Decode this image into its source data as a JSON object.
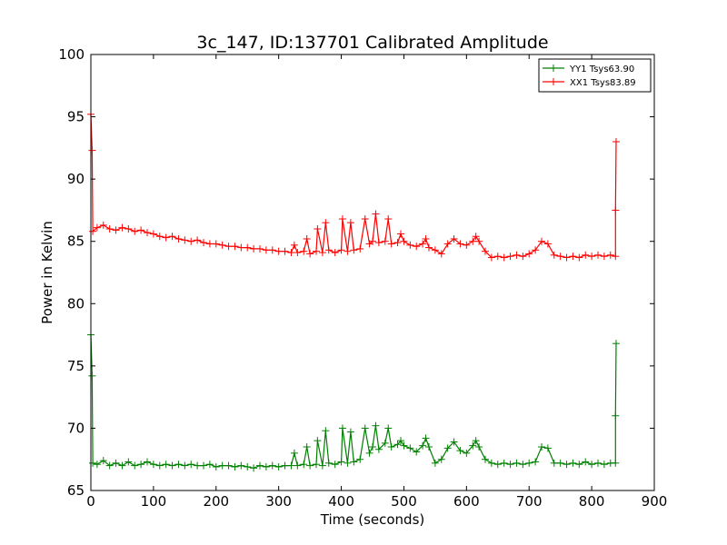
{
  "chart_data": {
    "type": "line",
    "title": "3c_147, ID:137701 Calibrated Amplitude",
    "xlabel": "Time (seconds)",
    "ylabel": "Power in Kelvin",
    "xlim": [
      0,
      900
    ],
    "ylim": [
      65,
      100
    ],
    "xticks": [
      0,
      100,
      200,
      300,
      400,
      500,
      600,
      700,
      800,
      900
    ],
    "yticks": [
      65,
      70,
      75,
      80,
      85,
      90,
      95,
      100
    ],
    "grid": false,
    "legend": "top-right",
    "series": [
      {
        "name": "YY1 Tsys63.90",
        "color": "#008000",
        "marker": "plus",
        "points": [
          [
            0,
            77.5
          ],
          [
            2,
            74.2
          ],
          [
            3,
            67.2
          ],
          [
            10,
            67.1
          ],
          [
            20,
            67.4
          ],
          [
            30,
            67.0
          ],
          [
            40,
            67.2
          ],
          [
            50,
            67.0
          ],
          [
            60,
            67.3
          ],
          [
            70,
            67.0
          ],
          [
            80,
            67.1
          ],
          [
            90,
            67.3
          ],
          [
            100,
            67.1
          ],
          [
            110,
            67.0
          ],
          [
            120,
            67.1
          ],
          [
            130,
            67.0
          ],
          [
            140,
            67.1
          ],
          [
            150,
            67.0
          ],
          [
            160,
            67.1
          ],
          [
            170,
            67.0
          ],
          [
            180,
            67.0
          ],
          [
            190,
            67.1
          ],
          [
            200,
            66.9
          ],
          [
            210,
            67.0
          ],
          [
            220,
            67.0
          ],
          [
            230,
            66.9
          ],
          [
            240,
            67.0
          ],
          [
            250,
            66.9
          ],
          [
            260,
            66.8
          ],
          [
            270,
            67.0
          ],
          [
            280,
            66.9
          ],
          [
            290,
            67.0
          ],
          [
            300,
            66.9
          ],
          [
            310,
            67.0
          ],
          [
            320,
            67.0
          ],
          [
            325,
            68.0
          ],
          [
            330,
            67.0
          ],
          [
            340,
            67.1
          ],
          [
            345,
            68.5
          ],
          [
            350,
            67.0
          ],
          [
            360,
            67.1
          ],
          [
            362,
            69.0
          ],
          [
            370,
            67.0
          ],
          [
            375,
            69.8
          ],
          [
            380,
            67.2
          ],
          [
            390,
            67.1
          ],
          [
            400,
            67.3
          ],
          [
            402,
            70.0
          ],
          [
            410,
            67.2
          ],
          [
            415,
            69.7
          ],
          [
            420,
            67.3
          ],
          [
            430,
            67.5
          ],
          [
            438,
            70.0
          ],
          [
            445,
            68.0
          ],
          [
            450,
            68.5
          ],
          [
            455,
            70.2
          ],
          [
            460,
            68.3
          ],
          [
            470,
            68.8
          ],
          [
            475,
            70.0
          ],
          [
            480,
            68.5
          ],
          [
            490,
            68.7
          ],
          [
            495,
            69.0
          ],
          [
            500,
            68.6
          ],
          [
            510,
            68.4
          ],
          [
            520,
            68.1
          ],
          [
            530,
            68.6
          ],
          [
            535,
            69.2
          ],
          [
            540,
            68.5
          ],
          [
            550,
            67.2
          ],
          [
            560,
            67.5
          ],
          [
            570,
            68.4
          ],
          [
            580,
            68.9
          ],
          [
            590,
            68.2
          ],
          [
            600,
            68.0
          ],
          [
            610,
            68.6
          ],
          [
            615,
            69.0
          ],
          [
            620,
            68.5
          ],
          [
            630,
            67.5
          ],
          [
            640,
            67.2
          ],
          [
            650,
            67.1
          ],
          [
            660,
            67.2
          ],
          [
            670,
            67.1
          ],
          [
            680,
            67.2
          ],
          [
            690,
            67.1
          ],
          [
            700,
            67.2
          ],
          [
            710,
            67.3
          ],
          [
            720,
            68.5
          ],
          [
            730,
            68.4
          ],
          [
            740,
            67.2
          ],
          [
            750,
            67.2
          ],
          [
            760,
            67.1
          ],
          [
            770,
            67.2
          ],
          [
            780,
            67.1
          ],
          [
            790,
            67.3
          ],
          [
            800,
            67.1
          ],
          [
            810,
            67.2
          ],
          [
            820,
            67.1
          ],
          [
            830,
            67.2
          ],
          [
            838,
            67.2
          ],
          [
            838,
            71.0
          ],
          [
            839,
            76.8
          ]
        ]
      },
      {
        "name": "XX1 Tsys83.89",
        "color": "#ff0000",
        "marker": "plus",
        "points": [
          [
            0,
            95.2
          ],
          [
            2,
            92.3
          ],
          [
            3,
            85.8
          ],
          [
            10,
            86.1
          ],
          [
            20,
            86.3
          ],
          [
            30,
            86.0
          ],
          [
            40,
            85.9
          ],
          [
            50,
            86.1
          ],
          [
            60,
            86.0
          ],
          [
            70,
            85.8
          ],
          [
            80,
            85.9
          ],
          [
            90,
            85.7
          ],
          [
            100,
            85.6
          ],
          [
            110,
            85.4
          ],
          [
            120,
            85.3
          ],
          [
            130,
            85.4
          ],
          [
            140,
            85.2
          ],
          [
            150,
            85.1
          ],
          [
            160,
            85.0
          ],
          [
            170,
            85.1
          ],
          [
            180,
            84.9
          ],
          [
            190,
            84.8
          ],
          [
            200,
            84.8
          ],
          [
            210,
            84.7
          ],
          [
            220,
            84.6
          ],
          [
            230,
            84.6
          ],
          [
            240,
            84.5
          ],
          [
            250,
            84.5
          ],
          [
            260,
            84.4
          ],
          [
            270,
            84.4
          ],
          [
            280,
            84.3
          ],
          [
            290,
            84.3
          ],
          [
            300,
            84.2
          ],
          [
            310,
            84.2
          ],
          [
            320,
            84.1
          ],
          [
            325,
            84.7
          ],
          [
            330,
            84.1
          ],
          [
            340,
            84.2
          ],
          [
            345,
            85.2
          ],
          [
            350,
            84.0
          ],
          [
            360,
            84.2
          ],
          [
            362,
            86.0
          ],
          [
            370,
            84.1
          ],
          [
            375,
            86.5
          ],
          [
            380,
            84.3
          ],
          [
            390,
            84.1
          ],
          [
            400,
            84.3
          ],
          [
            402,
            86.8
          ],
          [
            410,
            84.2
          ],
          [
            415,
            86.5
          ],
          [
            420,
            84.3
          ],
          [
            430,
            84.4
          ],
          [
            438,
            86.8
          ],
          [
            445,
            84.8
          ],
          [
            450,
            85.0
          ],
          [
            455,
            87.2
          ],
          [
            460,
            84.9
          ],
          [
            470,
            85.0
          ],
          [
            475,
            86.8
          ],
          [
            480,
            84.8
          ],
          [
            490,
            84.9
          ],
          [
            495,
            85.6
          ],
          [
            500,
            85.0
          ],
          [
            510,
            84.7
          ],
          [
            520,
            84.6
          ],
          [
            530,
            84.8
          ],
          [
            535,
            85.2
          ],
          [
            540,
            84.5
          ],
          [
            550,
            84.3
          ],
          [
            560,
            84.0
          ],
          [
            570,
            84.8
          ],
          [
            580,
            85.2
          ],
          [
            590,
            84.8
          ],
          [
            600,
            84.7
          ],
          [
            610,
            85.0
          ],
          [
            615,
            85.4
          ],
          [
            620,
            85.0
          ],
          [
            630,
            84.2
          ],
          [
            640,
            83.7
          ],
          [
            650,
            83.8
          ],
          [
            660,
            83.7
          ],
          [
            670,
            83.8
          ],
          [
            680,
            83.9
          ],
          [
            690,
            83.8
          ],
          [
            700,
            84.0
          ],
          [
            710,
            84.3
          ],
          [
            720,
            85.0
          ],
          [
            730,
            84.8
          ],
          [
            740,
            83.9
          ],
          [
            750,
            83.8
          ],
          [
            760,
            83.7
          ],
          [
            770,
            83.8
          ],
          [
            780,
            83.7
          ],
          [
            790,
            83.9
          ],
          [
            800,
            83.8
          ],
          [
            810,
            83.9
          ],
          [
            820,
            83.8
          ],
          [
            830,
            83.9
          ],
          [
            838,
            83.8
          ],
          [
            838,
            87.5
          ],
          [
            839,
            93.0
          ]
        ]
      }
    ]
  }
}
